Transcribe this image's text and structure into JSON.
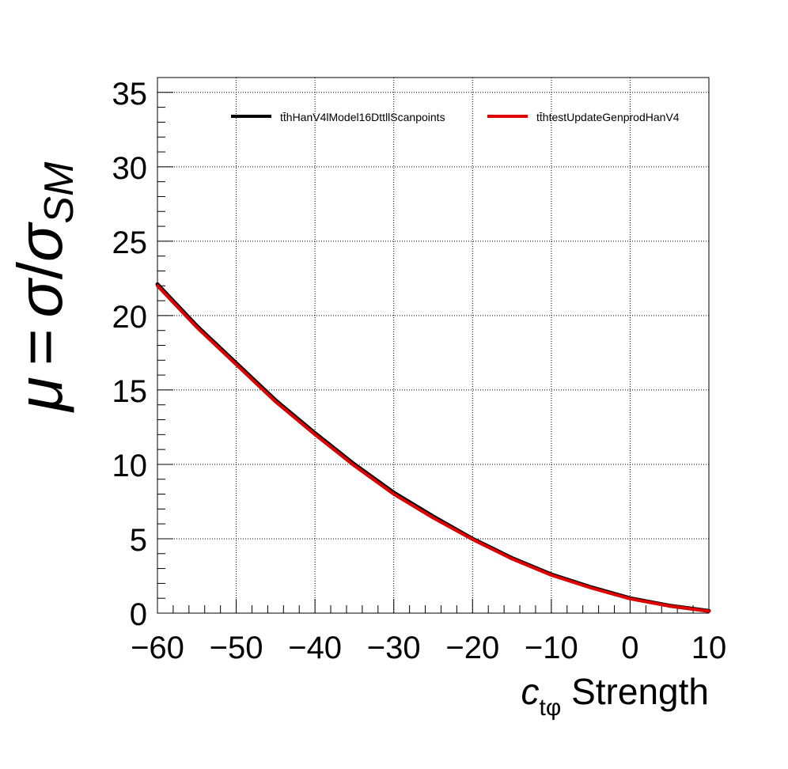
{
  "chart_data": {
    "type": "line",
    "xlabel": {
      "symbol": "c",
      "subscript": "tφ",
      "text": "Strength"
    },
    "ylabel": {
      "mu": "μ",
      "equals": "=",
      "sigma": "σ",
      "slash": "/",
      "sigma_sm": "σ",
      "sm": "SM"
    },
    "xlim": [
      -60,
      10
    ],
    "ylim": [
      0,
      36
    ],
    "x_ticks": [
      -60,
      -50,
      -40,
      -30,
      -20,
      -10,
      0,
      10
    ],
    "x_tick_labels": [
      "−60",
      "−50",
      "−40",
      "−30",
      "−20",
      "−10",
      "0",
      "10"
    ],
    "y_ticks": [
      0,
      5,
      10,
      15,
      20,
      25,
      30,
      35
    ],
    "y_tick_labels": [
      "0",
      "5",
      "10",
      "15",
      "20",
      "25",
      "30",
      "35"
    ],
    "grid": true,
    "legend_placement": "top",
    "x": [
      -60,
      -55,
      -50,
      -45,
      -40,
      -35,
      -30,
      -25,
      -20,
      -15,
      -10,
      -5,
      0,
      5,
      10
    ],
    "series": [
      {
        "name": "tt̄hHanV4lModel16DttllScanpoints",
        "color": "#000000",
        "values": [
          22.1,
          19.3,
          16.8,
          14.3,
          12.1,
          10.0,
          8.1,
          6.5,
          5.0,
          3.7,
          2.6,
          1.75,
          1.0,
          0.5,
          0.15
        ]
      },
      {
        "name": "tt̄htestUpdateGenprodHanV4",
        "color": "#e00000",
        "values": [
          22.0,
          19.2,
          16.7,
          14.2,
          12.0,
          9.9,
          8.0,
          6.4,
          4.95,
          3.65,
          2.55,
          1.7,
          0.97,
          0.48,
          0.13
        ]
      }
    ]
  }
}
